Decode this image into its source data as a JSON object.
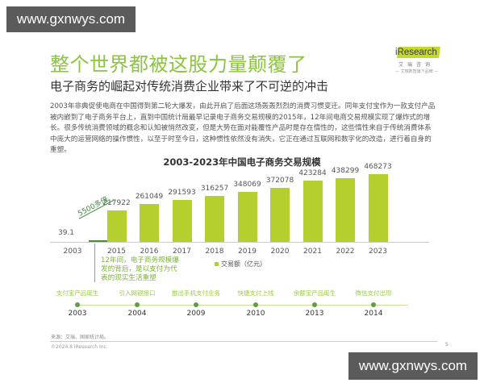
{
  "watermark": {
    "top": "www.gxnwys.com",
    "bottom": "www.gxnwys.com"
  },
  "header": {
    "title": "整个世界都被这股力量颠覆了",
    "subtitle": "电子商务的崛起对传统消费企业带来了不可逆的冲击"
  },
  "logo": {
    "brand": "iResearch",
    "cn": "艾瑞咨询",
    "tagline": "— 艾瑞数智旗下品牌 —"
  },
  "paragraph": "2003年非典促使电商在中国得到第二轮大爆发，由此开启了后面这场轰轰烈烈的消费习惯变迁。同年支付宝作为一款支付产品被内嵌到了电子商务平台上，直到中国统计局最早记录电子商务交易规模的2015年，12年间电商交易规模实现了爆炸式的增长。很多传统消费领域的概念和认知被悄然改变，但是大势在面对能覆性产品时是存在惰性的，这些惰性来自于传统消费体系中庞大的运营网络的操作惯性，以至于时至今日，这种惯性依然没有消失，它正在通过互联网和数字化的改造，进行着自身的重塑。",
  "chart_data": {
    "type": "bar",
    "title": "2003-2023年中国电子商务交易规模",
    "categories": [
      "2003",
      "2015",
      "2016",
      "2017",
      "2018",
      "2019",
      "2020",
      "2021",
      "2022",
      "2023"
    ],
    "series": [
      {
        "name": "交易额（亿元）",
        "values": [
          39.1,
          217922,
          261049,
          291593,
          316257,
          348069,
          372078,
          423284,
          438299,
          468273
        ]
      }
    ],
    "value_labels": [
      "39.1",
      "217922",
      "261049",
      "291593",
      "316257",
      "348069",
      "372078",
      "423284",
      "438299",
      "468273"
    ],
    "xlabel": "",
    "ylabel": "",
    "legend": "交易额（亿元）",
    "legend_position": "bottom-center",
    "grid": false,
    "annotations": {
      "growth": "5500多倍",
      "note": "12年间，电子商务规模爆发的背后，是以支付为代表的现实生活重塑"
    },
    "colors": {
      "bar": "#b5cf2f",
      "bar_2003": "#4f8b3f"
    }
  },
  "timeline": [
    {
      "label": "支付宝产品诞生",
      "year": "2003"
    },
    {
      "label": "引入网银接口",
      "year": "2004"
    },
    {
      "label": "推出手机支付业务",
      "year": "2009"
    },
    {
      "label": "快捷支付上线",
      "year": "2010"
    },
    {
      "label": "余额宝产品诞生",
      "year": "2013"
    },
    {
      "label": "微信支付出现",
      "year": "2014"
    }
  ],
  "footer": {
    "source": "来源：艾瑞、国家统计局。",
    "copyright": "©2024.8 iResearch Inc.",
    "page": "5"
  }
}
